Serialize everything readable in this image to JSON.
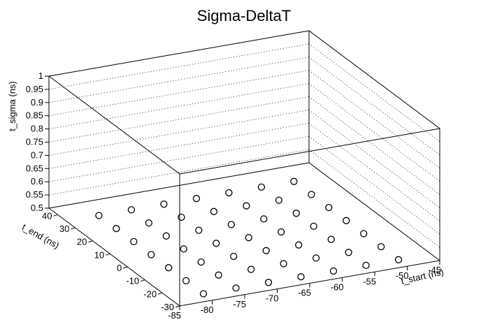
{
  "chart_data": {
    "type": "scatter3d",
    "title": "Sigma-DeltaT",
    "xlabel": "t_start (ns)",
    "ylabel": "t_end (ns)",
    "zlabel": "t_sigma (ns)",
    "xlim": [
      -85,
      -45
    ],
    "ylim": [
      -30,
      45
    ],
    "zlim": [
      0.5,
      1.0
    ],
    "x_ticks": [
      "-85",
      "-80",
      "-75",
      "-70",
      "-65",
      "-60",
      "-55",
      "-50",
      "-45"
    ],
    "y_ticks": [
      "-30",
      "-20",
      "-10",
      "0",
      "10",
      "20",
      "30",
      "40"
    ],
    "z_ticks": [
      "0.5",
      "0.55",
      "0.6",
      "0.65",
      "0.7",
      "0.75",
      "0.8",
      "0.85",
      "0.9",
      "0.95",
      "1"
    ],
    "grid": true,
    "marker": "open-circle",
    "x_levels": [
      -80,
      -75,
      -70,
      -65,
      -60,
      -55,
      -50
    ],
    "y_levels": [
      -25,
      -15,
      -5,
      5,
      15,
      25,
      35
    ]
  }
}
